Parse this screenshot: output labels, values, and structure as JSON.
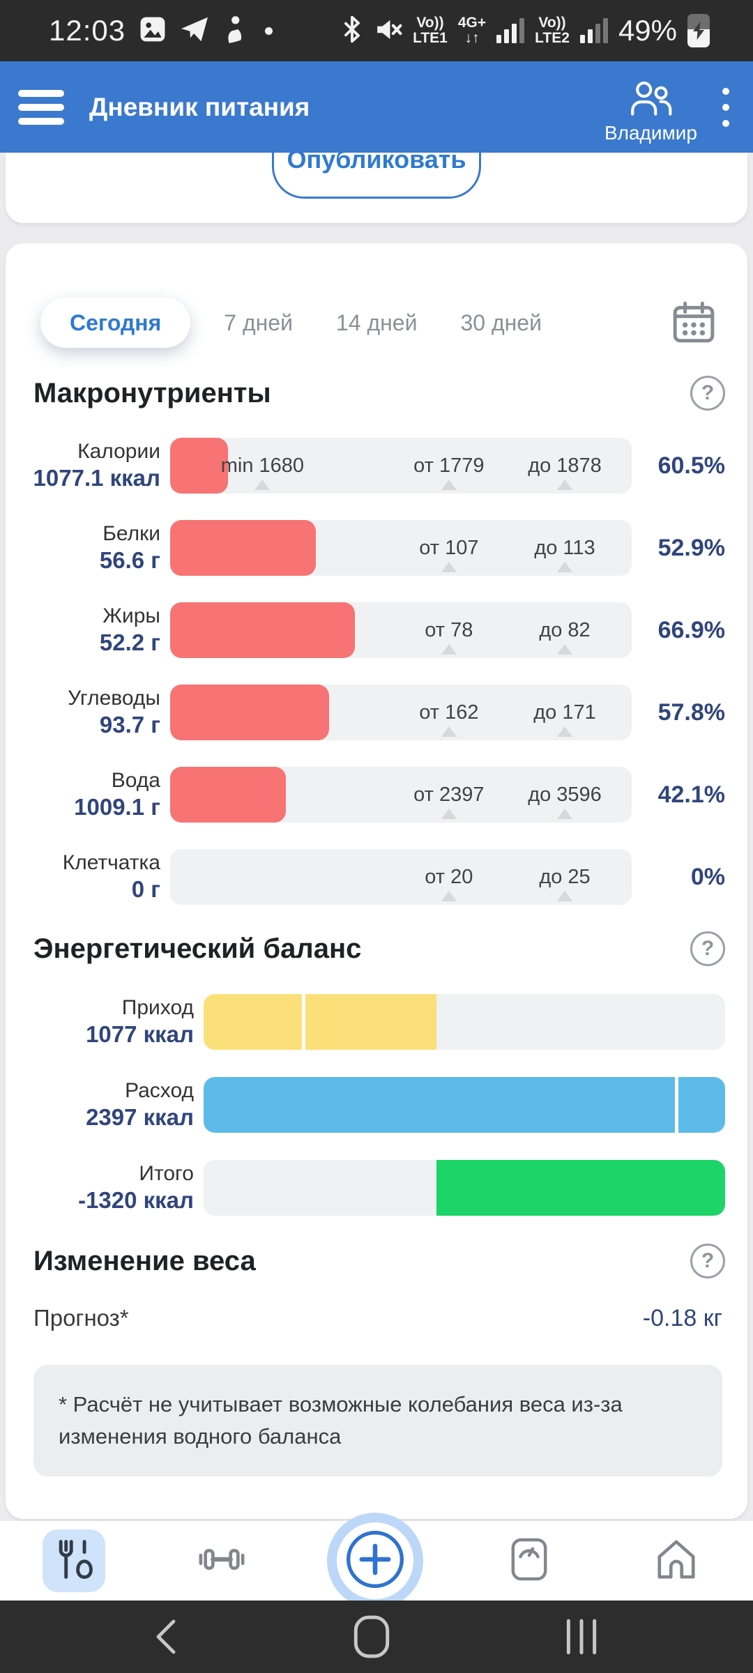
{
  "colors": {
    "header_blue": "#3b79ce",
    "accent_blue": "#2f7ad0",
    "value_navy": "#30457c",
    "bar_red": "#f87373",
    "bar_yellow": "#fbe07a",
    "bar_blue": "#5cbbe8",
    "bar_green": "#1cd468",
    "track_gray": "#f0f1f3",
    "nav_active_bg": "#cfe3fb"
  },
  "status_bar": {
    "time": "12:03",
    "battery_percent": "49%",
    "volte1_top": "Vo))",
    "volte1_bottom": "LTE1",
    "net_top": "4G+",
    "net_arrows": "↓↑",
    "volte2_top": "Vo))",
    "volte2_bottom": "LTE2"
  },
  "header": {
    "title": "Дневник питания",
    "user": "Владимир"
  },
  "publish": {
    "label": "Опубликовать"
  },
  "icons": {
    "question": "?"
  },
  "period_tabs": {
    "items": [
      {
        "id": "today",
        "label": "Сегодня",
        "active": true
      },
      {
        "id": "7days",
        "label": "7 дней",
        "active": false
      },
      {
        "id": "14days",
        "label": "14 дней",
        "active": false
      },
      {
        "id": "30days",
        "label": "30 дней",
        "active": false
      }
    ]
  },
  "macronutrients": {
    "title": "Макронутриенты",
    "rows": [
      {
        "id": "calories",
        "label": "Калории",
        "value": "1077.1 ккал",
        "percent": "60.5%",
        "fill_pct": 12.5,
        "markers": [
          {
            "text": "min 1680",
            "pos": 20
          },
          {
            "text": "от 1779",
            "pos": 60.4
          },
          {
            "text": "до 1878",
            "pos": 85.5
          }
        ]
      },
      {
        "id": "protein",
        "label": "Белки",
        "value": "56.6 г",
        "percent": "52.9%",
        "fill_pct": 31.5,
        "markers": [
          {
            "text": "от 107",
            "pos": 60.4
          },
          {
            "text": "до 113",
            "pos": 85.5
          }
        ]
      },
      {
        "id": "fats",
        "label": "Жиры",
        "value": "52.2 г",
        "percent": "66.9%",
        "fill_pct": 40,
        "markers": [
          {
            "text": "от 78",
            "pos": 60.4
          },
          {
            "text": "до 82",
            "pos": 85.5
          }
        ]
      },
      {
        "id": "carbs",
        "label": "Углеводы",
        "value": "93.7 г",
        "percent": "57.8%",
        "fill_pct": 34.5,
        "markers": [
          {
            "text": "от 162",
            "pos": 60.4
          },
          {
            "text": "до 171",
            "pos": 85.5
          }
        ]
      },
      {
        "id": "water",
        "label": "Вода",
        "value": "1009.1 г",
        "percent": "42.1%",
        "fill_pct": 25,
        "markers": [
          {
            "text": "от 2397",
            "pos": 60.4
          },
          {
            "text": "до 3596",
            "pos": 85.5
          }
        ]
      },
      {
        "id": "fiber",
        "label": "Клетчатка",
        "value": "0 г",
        "percent": "0%",
        "fill_pct": 0,
        "markers": [
          {
            "text": "от 20",
            "pos": 60.4
          },
          {
            "text": "до 25",
            "pos": 85.5
          }
        ]
      }
    ]
  },
  "energy_balance": {
    "title": "Энергетический баланс",
    "rows": [
      {
        "id": "income",
        "label": "Приход",
        "value": "1077 ккал",
        "color": "#fbe07a",
        "fill_start": 0,
        "fill_end": 44.7,
        "divider": 18.8,
        "radius": "16px 0 0 16px"
      },
      {
        "id": "expense",
        "label": "Расход",
        "value": "2397 ккал",
        "color": "#5cbbe8",
        "fill_start": 0,
        "fill_end": 100,
        "divider": 90.4,
        "radius": "16px"
      },
      {
        "id": "total",
        "label": "Итого",
        "value": "-1320 ккал",
        "color": "#1cd468",
        "fill_start": 44.7,
        "fill_end": 100,
        "divider": null,
        "radius": "0 16px 16px 0"
      }
    ]
  },
  "weight_change": {
    "title": "Изменение веса",
    "forecast_label": "Прогноз*",
    "forecast_value": "-0.18 кг",
    "note": "* Расчёт не учитывает возможные колебания веса из-за изменения водного баланса"
  }
}
